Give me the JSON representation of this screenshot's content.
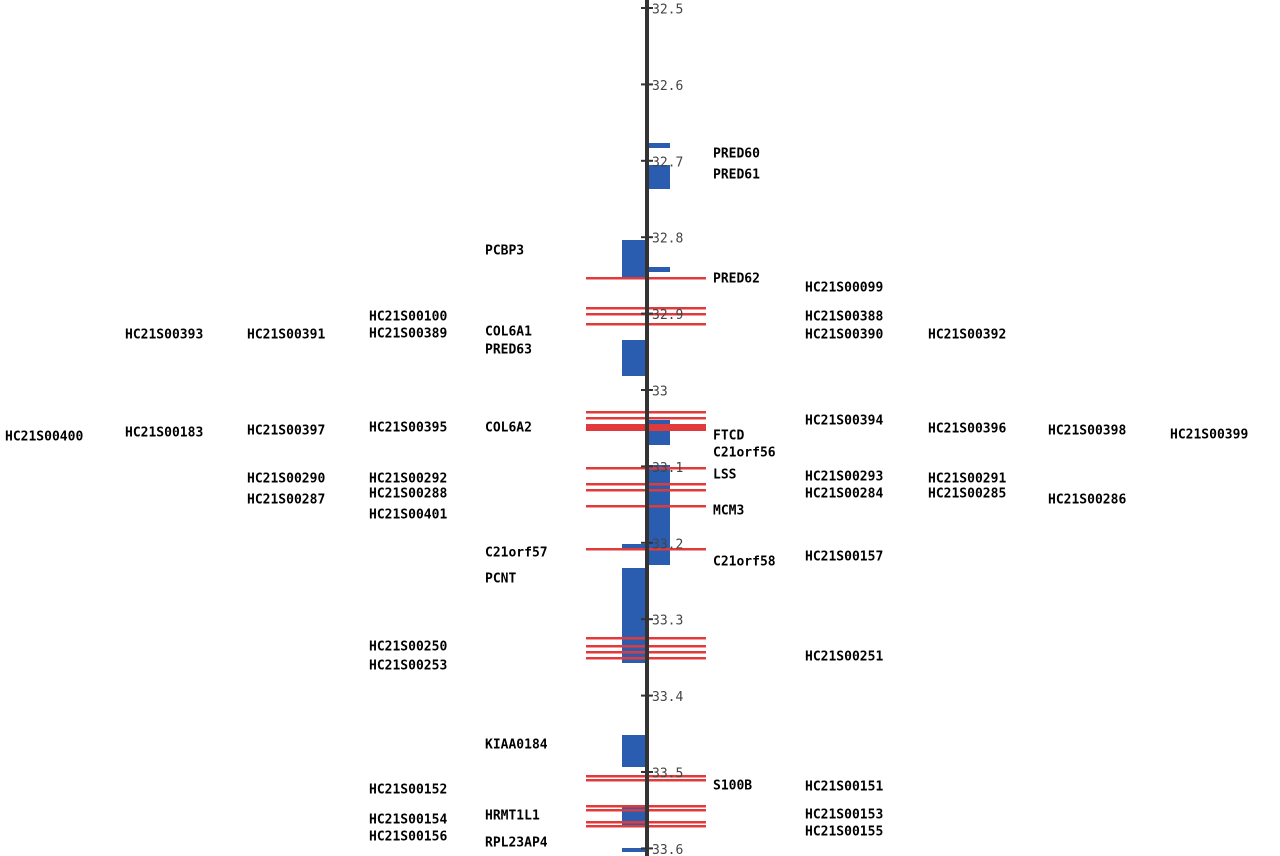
{
  "axis": {
    "ticks": [
      "32.5",
      "32.6",
      "32.7",
      "32.8",
      "32.9",
      "33",
      "33.1",
      "33.2",
      "33.3",
      "33.4",
      "33.5",
      "33.6"
    ]
  },
  "labels": [
    "PRED60",
    "PRED61",
    "PCBP3",
    "PRED62",
    "HC21S00099",
    "HC21S00100",
    "HC21S00388",
    "HC21S00393",
    "HC21S00391",
    "HC21S00389",
    "COL6A1",
    "HC21S00390",
    "HC21S00392",
    "PRED63",
    "HC21S00400",
    "HC21S00183",
    "HC21S00397",
    "HC21S00395",
    "COL6A2",
    "HC21S00394",
    "HC21S00396",
    "HC21S00398",
    "HC21S00399",
    "FTCD",
    "C21orf56",
    "HC21S00290",
    "HC21S00292",
    "LSS",
    "HC21S00293",
    "HC21S00291",
    "HC21S00287",
    "HC21S00288",
    "HC21S00284",
    "HC21S00285",
    "HC21S00286",
    "HC21S00401",
    "MCM3",
    "C21orf57",
    "C21orf58",
    "HC21S00157",
    "PCNT",
    "HC21S00250",
    "HC21S00253",
    "HC21S00251",
    "KIAA0184",
    "HC21S00152",
    "S100B",
    "HC21S00151",
    "HC21S00154",
    "HRMT1L1",
    "HC21S00153",
    "HC21S00156",
    "RPL23AP4",
    "HC21S00155"
  ]
}
